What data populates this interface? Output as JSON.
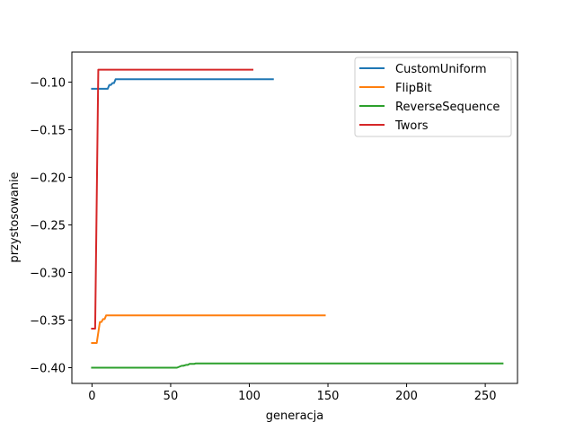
{
  "chart_data": {
    "type": "line",
    "title": "",
    "xlabel": "generacja",
    "ylabel": "przystosowanie",
    "xlim": [
      -12.8,
      270.5
    ],
    "ylim": [
      -0.4165,
      -0.0685
    ],
    "xticks": [
      0,
      50,
      100,
      150,
      200,
      250
    ],
    "yticks": [
      -0.4,
      -0.35,
      -0.3,
      -0.25,
      -0.2,
      -0.15,
      -0.1
    ],
    "xtick_labels": [
      "0",
      "50",
      "100",
      "150",
      "200",
      "250"
    ],
    "ytick_labels": [
      "−0.40",
      "−0.35",
      "−0.30",
      "−0.25",
      "−0.20",
      "−0.15",
      "−0.10"
    ],
    "grid": false,
    "legend_position": "top-right",
    "series": [
      {
        "name": "CustomUniform",
        "color": "#1f77b4",
        "x": [
          0,
          10,
          11,
          12,
          13,
          14,
          15,
          115
        ],
        "y": [
          -0.107,
          -0.107,
          -0.103,
          -0.103,
          -0.101,
          -0.101,
          -0.097,
          -0.097
        ]
      },
      {
        "name": "FlipBit",
        "color": "#ff7f0e",
        "x": [
          0,
          3,
          5,
          6,
          7,
          8,
          9,
          148
        ],
        "y": [
          -0.374,
          -0.374,
          -0.352,
          -0.352,
          -0.349,
          -0.349,
          -0.345,
          -0.345
        ]
      },
      {
        "name": "ReverseSequence",
        "color": "#2ca02c",
        "x": [
          0,
          54,
          57,
          58,
          60,
          61,
          62,
          65,
          66,
          68,
          261
        ],
        "y": [
          -0.4,
          -0.4,
          -0.398,
          -0.398,
          -0.397,
          -0.397,
          -0.396,
          -0.396,
          -0.3955,
          -0.3955,
          -0.3955
        ]
      },
      {
        "name": "Twors",
        "color": "#d62728",
        "x": [
          0,
          2,
          4,
          5,
          102
        ],
        "y": [
          -0.359,
          -0.359,
          -0.087,
          -0.087,
          -0.087
        ]
      }
    ]
  }
}
